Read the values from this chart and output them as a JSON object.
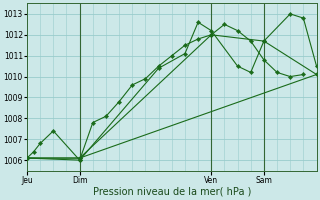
{
  "background_color": "#cce8e8",
  "grid_color": "#99cccc",
  "line_color": "#1a6b1a",
  "xlabel": "Pression niveau de la mer( hPa )",
  "ylim": [
    1005.5,
    1013.5
  ],
  "yticks": [
    1006,
    1007,
    1008,
    1009,
    1010,
    1011,
    1012,
    1013
  ],
  "xlim": [
    0,
    264
  ],
  "xtick_positions": [
    0,
    48,
    168,
    216
  ],
  "xtick_labels": [
    "Jeu",
    "Dim",
    "Ven",
    "Sam"
  ],
  "vline_positions": [
    48,
    168,
    216
  ],
  "series": [
    {
      "x": [
        0,
        6,
        12,
        24,
        48,
        60,
        72,
        84,
        96,
        108,
        120,
        132,
        144,
        156,
        168,
        180,
        192,
        204,
        216,
        228,
        240,
        252
      ],
      "y": [
        1006.1,
        1006.4,
        1006.8,
        1007.4,
        1006.0,
        1007.8,
        1008.1,
        1008.8,
        1009.6,
        1009.9,
        1010.5,
        1011.0,
        1011.5,
        1011.8,
        1012.0,
        1012.5,
        1012.2,
        1011.7,
        1010.8,
        1010.2,
        1010.0,
        1010.1
      ]
    },
    {
      "x": [
        0,
        48,
        264
      ],
      "y": [
        1006.1,
        1006.1,
        1010.1
      ]
    },
    {
      "x": [
        0,
        48,
        168,
        216,
        264
      ],
      "y": [
        1006.1,
        1006.1,
        1012.0,
        1011.7,
        1010.1
      ]
    },
    {
      "x": [
        0,
        48,
        120,
        144,
        156,
        168,
        192,
        204,
        216,
        240,
        252,
        264
      ],
      "y": [
        1006.1,
        1006.0,
        1010.4,
        1011.1,
        1012.6,
        1012.2,
        1010.5,
        1010.2,
        1011.7,
        1013.0,
        1012.8,
        1010.5
      ]
    }
  ]
}
